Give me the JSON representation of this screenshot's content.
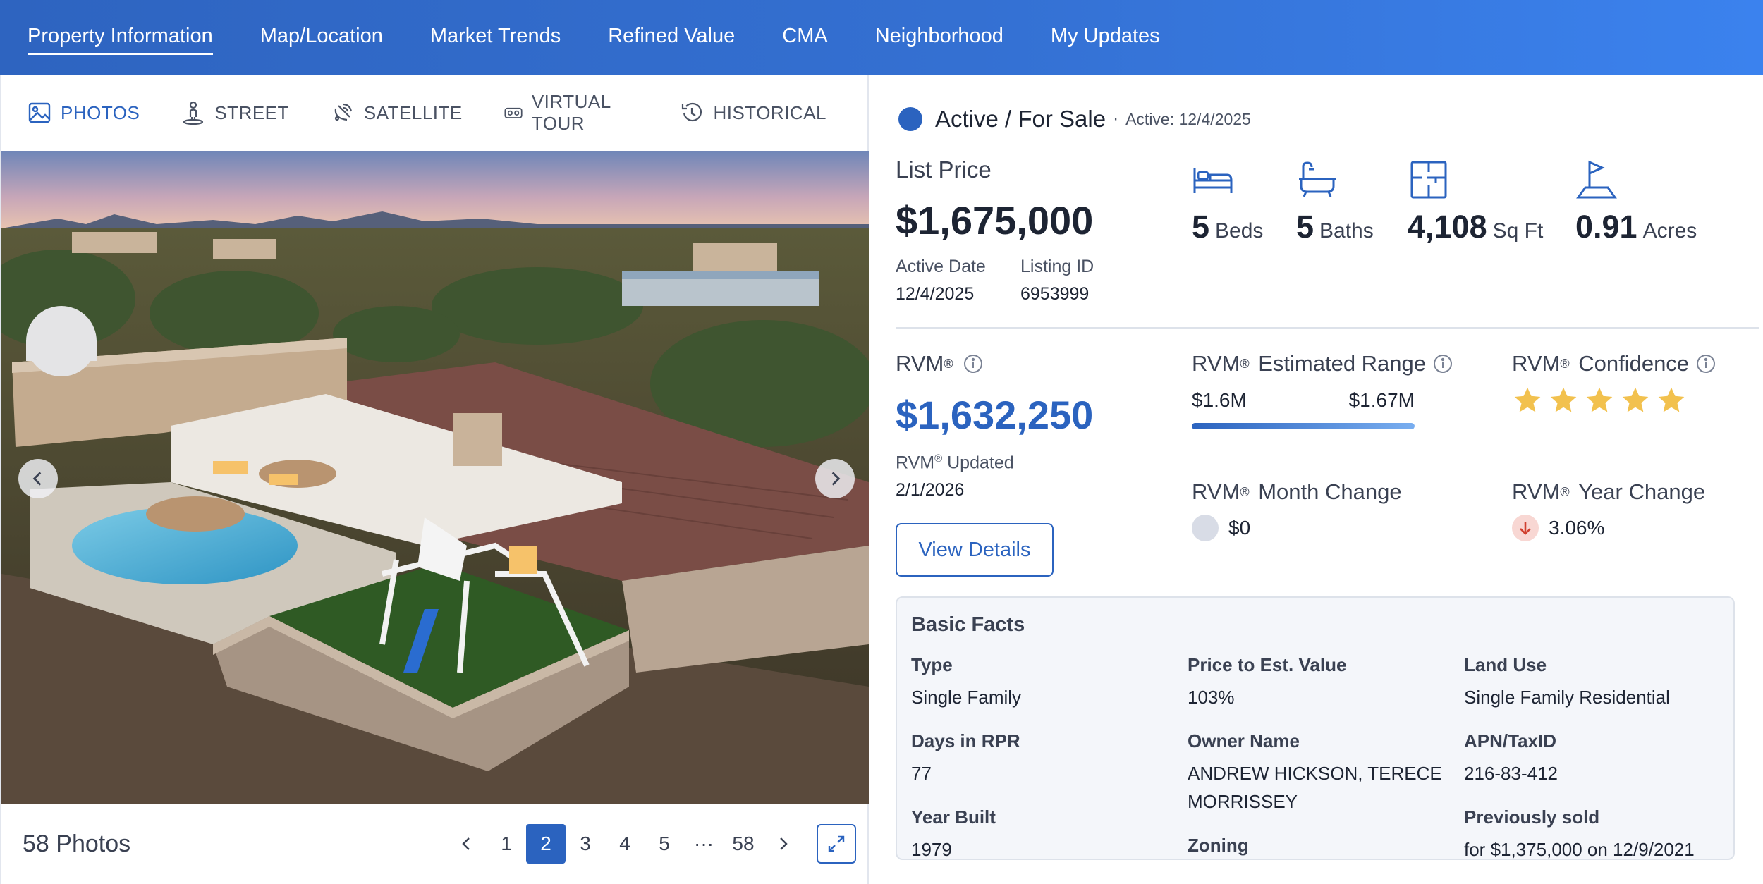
{
  "nav": {
    "items": [
      "Property Information",
      "Map/Location",
      "Market Trends",
      "Refined Value",
      "CMA",
      "Neighborhood",
      "My Updates"
    ],
    "active_index": 0
  },
  "media_tabs": [
    "PHOTOS",
    "STREET",
    "SATELLITE",
    "VIRTUAL TOUR",
    "HISTORICAL"
  ],
  "photos": {
    "count_label": "58 Photos",
    "pages": [
      "1",
      "2",
      "3",
      "4",
      "5",
      "···",
      "58"
    ],
    "current_page": "2"
  },
  "status": {
    "label": "Active / For Sale",
    "separator": "·",
    "active_text": "Active: 12/4/2025",
    "dot_color": "#2b63bf"
  },
  "listing": {
    "price_label": "List Price",
    "price": "$1,675,000",
    "active_date_label": "Active Date",
    "active_date": "12/4/2025",
    "listing_id_label": "Listing ID",
    "listing_id": "6953999"
  },
  "specs": {
    "beds": {
      "value": "5",
      "unit": "Beds",
      "icon": "bed-icon"
    },
    "baths": {
      "value": "5",
      "unit": "Baths",
      "icon": "bathtub-icon"
    },
    "sqft": {
      "value": "4,108",
      "unit": "Sq Ft",
      "icon": "floorplan-icon"
    },
    "acres": {
      "value": "0.91",
      "unit": "Acres",
      "icon": "lot-flag-icon"
    }
  },
  "rvm": {
    "reg": "®",
    "label": "RVM",
    "value": "$1,632,250",
    "updated_label": "Updated",
    "updated_date": "2/1/2026",
    "view_details": "View Details",
    "range_label": "Estimated Range",
    "range_low": "$1.6M",
    "range_high": "$1.67M",
    "confidence_label": "Confidence",
    "confidence_stars": 5,
    "month_change_label": "Month Change",
    "month_change": "$0",
    "year_change_label": "Year Change",
    "year_change": "3.06%",
    "accent_color": "#2b63bf",
    "star_color": "#f2c14e"
  },
  "basic_facts": {
    "title": "Basic Facts",
    "type_label": "Type",
    "type": "Single Family",
    "price_est_label": "Price to Est. Value",
    "price_est": "103%",
    "land_use_label": "Land Use",
    "land_use": "Single Family Residential",
    "days_label": "Days in RPR",
    "days": "77",
    "owner_label": "Owner Name",
    "owner": "ANDREW HICKSON, TERECE MORRISSEY",
    "apn_label": "APN/TaxID",
    "apn": "216-83-412",
    "year_built_label": "Year Built",
    "year_built": "1979",
    "zoning_label": "Zoning",
    "prev_sold_label": "Previously sold",
    "prev_sold": "for $1,375,000 on 12/9/2021"
  }
}
